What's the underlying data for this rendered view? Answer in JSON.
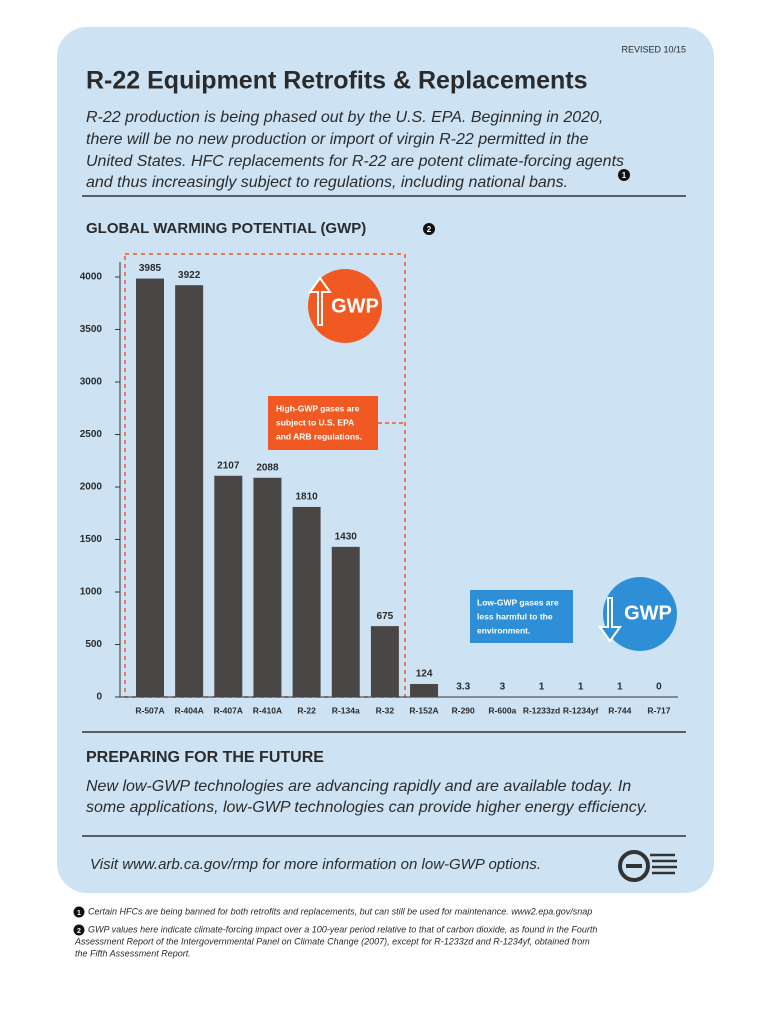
{
  "revised": "REVISED 10/15",
  "title": "R-22 Equipment Retrofits & Replacements",
  "intro": [
    "R-22 production is being phased out by the U.S. EPA. Beginning in 2020,",
    "there will be no new production or import of virgin R-22 permitted in the",
    "United States. HFC replacements for R-22 are potent climate-forcing agents",
    "and thus increasingly subject to regulations, including national bans."
  ],
  "intro_marker": "1",
  "chart_heading": "GLOBAL WARMING POTENTIAL (GWP)",
  "chart_marker": "2",
  "chart_data": {
    "type": "bar",
    "categories": [
      "R-507A",
      "R-404A",
      "R-407A",
      "R-410A",
      "R-22",
      "R-134a",
      "R-32",
      "R-152A",
      "R-290",
      "R-600a",
      "R-1233zd",
      "R-1234yf",
      "R-744",
      "R-717"
    ],
    "values": [
      3985,
      3922,
      2107,
      2088,
      1810,
      1430,
      675,
      124,
      3.3,
      3,
      1,
      1,
      1,
      0
    ],
    "color": "#4a4646",
    "ylim": [
      0,
      4000
    ],
    "yticks": [
      0,
      500,
      1000,
      1500,
      2000,
      2500,
      3000,
      3500,
      4000
    ],
    "grid": false
  },
  "high_badge": "GWP",
  "high_note": [
    "High-GWP gases are",
    "subject to U.S. EPA",
    "and ARB regulations."
  ],
  "low_badge": "GWP",
  "low_note": [
    "Low-GWP gases are",
    "less harmful to the",
    "environment."
  ],
  "section_title": "PREPARING FOR THE FUTURE",
  "section_text": [
    "New low-GWP technologies are advancing rapidly and are available today. In",
    "some applications, low-GWP technologies can provide higher energy efficiency."
  ],
  "visit": "Visit www.arb.ca.gov/rmp for more information on low-GWP options.",
  "footnotes": [
    {
      "marker": "1",
      "lines": [
        "Certain HFCs are being banned for both retrofits and replacements, but can still be used for maintenance. www2.epa.gov/snap"
      ]
    },
    {
      "marker": "2",
      "lines": [
        "GWP values here indicate climate-forcing impact over a 100-year period relative to that of carbon dioxide, as found in the Fourth",
        "Assessment Report of the Intergovernmental Panel on Climate Change (2007), except for R-1233zd and R-1234yf, obtained from",
        "the Fifth Assessment Report."
      ]
    }
  ]
}
